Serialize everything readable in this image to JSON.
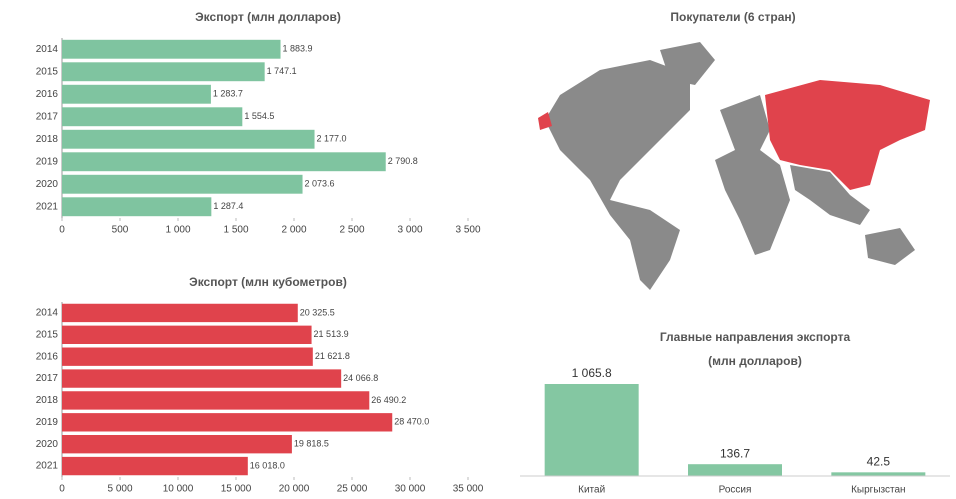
{
  "chart_data": [
    {
      "type": "hbar",
      "title": "Экспорт (млн долларов)",
      "color": "#7fc4a0",
      "categories": [
        "2014",
        "2015",
        "2016",
        "2017",
        "2018",
        "2019",
        "2020",
        "2021"
      ],
      "values": [
        1883.9,
        1747.1,
        1283.7,
        1554.5,
        2177.0,
        2790.8,
        2073.6,
        1287.4
      ],
      "value_labels": [
        "1 883.9",
        "1 747.1",
        "1 283.7",
        "1 554.5",
        "2 177.0",
        "2 790.8",
        "2 073.6",
        "1 287.4"
      ],
      "xlim": [
        0,
        3500
      ],
      "xticks": [
        0,
        500,
        {
          "value": 1000,
          "label": "1 000"
        },
        {
          "value": 1500,
          "label": "1 500"
        },
        {
          "value": 2000,
          "label": "2 000"
        },
        {
          "value": 2500,
          "label": "2 500"
        },
        {
          "value": 3000,
          "label": "3 000"
        },
        {
          "value": 3500,
          "label": "3 500"
        }
      ]
    },
    {
      "type": "map",
      "title": "Покупатели (6 стран)",
      "color": "#e0434c"
    },
    {
      "type": "hbar",
      "title": "Экспорт (млн кубометров)",
      "color": "#e0434c",
      "categories": [
        "2014",
        "2015",
        "2016",
        "2017",
        "2018",
        "2019",
        "2020",
        "2021"
      ],
      "values": [
        20325.5,
        21513.9,
        21621.8,
        24066.8,
        26490.2,
        28470.0,
        19818.5,
        16018.0
      ],
      "value_labels": [
        "20 325.5",
        "21 513.9",
        "21 621.8",
        "24 066.8",
        "26 490.2",
        "28 470.0",
        "19 818.5",
        "16 018.0"
      ],
      "xlim": [
        0,
        35000
      ],
      "xticks": [
        0,
        {
          "value": 5000,
          "label": "5 000"
        },
        {
          "value": 10000,
          "label": "10 000"
        },
        {
          "value": 15000,
          "label": "15 000"
        },
        {
          "value": 20000,
          "label": "20 000"
        },
        {
          "value": 25000,
          "label": "25 000"
        },
        {
          "value": 30000,
          "label": "30 000"
        },
        {
          "value": 35000,
          "label": "35 000"
        }
      ]
    },
    {
      "type": "vbar",
      "title": "Главные направления экспорта",
      "subtitle": "(млн долларов)",
      "color": "#84c7a2",
      "categories": [
        "Китай",
        "Россия",
        "Кыргызстан"
      ],
      "values": [
        1065.8,
        136.7,
        42.5
      ],
      "value_labels": [
        "1 065.8",
        "136.7",
        "42.5"
      ]
    }
  ]
}
